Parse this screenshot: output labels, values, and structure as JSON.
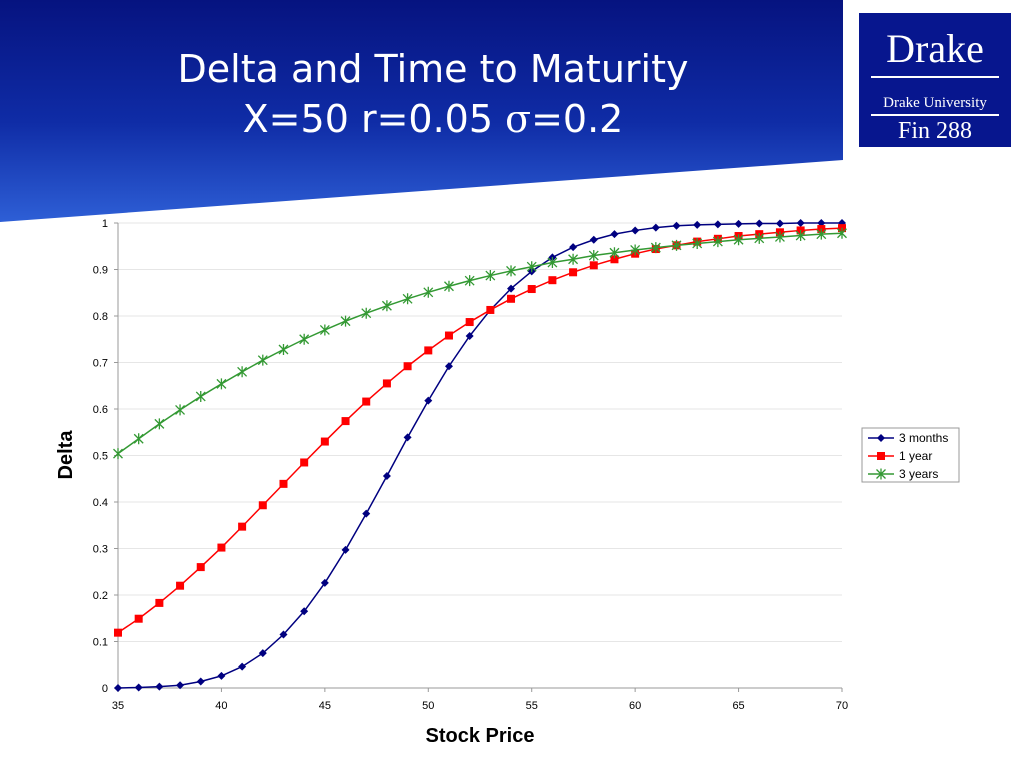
{
  "slide": {
    "title_line1": "Delta and Time to Maturity",
    "title_line2_prefix": "X=50 r=0.05 ",
    "title_line2_symbol": "σ",
    "title_line2_suffix": "=0.2"
  },
  "logo": {
    "name": "Drake",
    "subtitle": "Drake University",
    "course": "Fin 288"
  },
  "colors": {
    "header_blue": "#07168e",
    "series_3_months": "#000080",
    "series_1_year": "#ff0000",
    "series_3_years": "#339933"
  },
  "chart_data": {
    "type": "line",
    "xlabel": "Stock Price",
    "ylabel": "Delta",
    "xlim": [
      35,
      70
    ],
    "ylim": [
      0,
      1
    ],
    "xticks": [
      "35",
      "40",
      "45",
      "50",
      "55",
      "60",
      "65",
      "70"
    ],
    "yticks": [
      "0",
      "0.1",
      "0.2",
      "0.3",
      "0.4",
      "0.5",
      "0.6",
      "0.7",
      "0.8",
      "0.9",
      "1"
    ],
    "grid": true,
    "legend": "right",
    "x": [
      35,
      36,
      37,
      38,
      39,
      40,
      41,
      42,
      43,
      44,
      45,
      46,
      47,
      48,
      49,
      50,
      51,
      52,
      53,
      54,
      55,
      56,
      57,
      58,
      59,
      60,
      61,
      62,
      63,
      64,
      65,
      66,
      67,
      68,
      69,
      70
    ],
    "series": [
      {
        "name": "3 months",
        "marker": "diamond",
        "values": [
          0.0,
          0.001,
          0.003,
          0.006,
          0.014,
          0.026,
          0.046,
          0.075,
          0.115,
          0.165,
          0.226,
          0.297,
          0.375,
          0.456,
          0.539,
          0.618,
          0.692,
          0.757,
          0.813,
          0.859,
          0.896,
          0.926,
          0.948,
          0.964,
          0.976,
          0.984,
          0.99,
          0.994,
          0.996,
          0.997,
          0.998,
          0.999,
          0.999,
          1.0,
          1.0,
          1.0
        ]
      },
      {
        "name": "1 year",
        "marker": "square",
        "values": [
          0.119,
          0.149,
          0.183,
          0.22,
          0.26,
          0.302,
          0.347,
          0.393,
          0.439,
          0.485,
          0.53,
          0.574,
          0.616,
          0.655,
          0.692,
          0.726,
          0.758,
          0.787,
          0.813,
          0.837,
          0.858,
          0.877,
          0.894,
          0.909,
          0.922,
          0.934,
          0.944,
          0.952,
          0.96,
          0.966,
          0.972,
          0.976,
          0.98,
          0.984,
          0.987,
          0.989
        ]
      },
      {
        "name": "3 years",
        "marker": "star",
        "values": [
          0.504,
          0.536,
          0.568,
          0.598,
          0.627,
          0.654,
          0.68,
          0.705,
          0.728,
          0.75,
          0.77,
          0.789,
          0.806,
          0.822,
          0.837,
          0.851,
          0.864,
          0.876,
          0.887,
          0.897,
          0.906,
          0.915,
          0.922,
          0.93,
          0.936,
          0.942,
          0.947,
          0.952,
          0.956,
          0.96,
          0.964,
          0.967,
          0.97,
          0.973,
          0.976,
          0.978
        ]
      }
    ]
  }
}
